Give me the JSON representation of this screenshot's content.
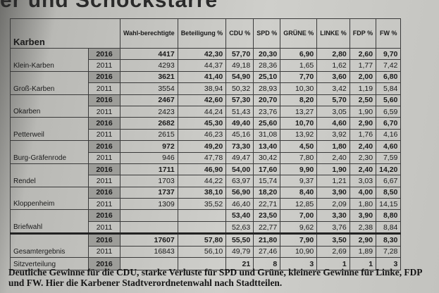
{
  "headline": "er und Schockstarre",
  "table": {
    "header": [
      "Karben",
      "Wahl-berechtigte",
      "Beteiligung %",
      "CDU %",
      "SPD %",
      "GRÜNE %",
      "LINKE %",
      "FDP %",
      "FW %"
    ],
    "rows": [
      {
        "name": "Klein-Karben",
        "years": [
          {
            "year": "2016",
            "cells": [
              "4417",
              "42,30",
              "57,70",
              "20,30",
              "6,90",
              "2,80",
              "2,60",
              "9,70"
            ]
          },
          {
            "year": "2011",
            "cells": [
              "4293",
              "44,37",
              "49,18",
              "28,36",
              "1,65",
              "1,62",
              "1,77",
              "7,42"
            ]
          }
        ]
      },
      {
        "name": "Groß-Karben",
        "years": [
          {
            "year": "2016",
            "cells": [
              "3621",
              "41,40",
              "54,90",
              "25,10",
              "7,70",
              "3,60",
              "2,00",
              "6,80"
            ]
          },
          {
            "year": "2011",
            "cells": [
              "3554",
              "38,94",
              "50,32",
              "28,93",
              "10,30",
              "3,42",
              "1,19",
              "5,84"
            ]
          }
        ]
      },
      {
        "name": "Okarben",
        "years": [
          {
            "year": "2016",
            "cells": [
              "2467",
              "42,60",
              "57,30",
              "20,70",
              "8,20",
              "5,70",
              "2,50",
              "5,60"
            ]
          },
          {
            "year": "2011",
            "cells": [
              "2423",
              "44,24",
              "51,43",
              "23,76",
              "13,27",
              "3,05",
              "1,90",
              "6,59"
            ]
          }
        ]
      },
      {
        "name": "Petterweil",
        "years": [
          {
            "year": "2016",
            "cells": [
              "2682",
              "45,30",
              "49,40",
              "25,60",
              "10,70",
              "4,60",
              "2,90",
              "6,70"
            ]
          },
          {
            "year": "2011",
            "cells": [
              "2615",
              "46,23",
              "45,16",
              "31,08",
              "13,92",
              "3,92",
              "1,76",
              "4,16"
            ]
          }
        ]
      },
      {
        "name": "Burg-Gräfenrode",
        "years": [
          {
            "year": "2016",
            "cells": [
              "972",
              "49,20",
              "73,30",
              "13,40",
              "4,50",
              "1,80",
              "2,40",
              "4,60"
            ]
          },
          {
            "year": "2011",
            "cells": [
              "946",
              "47,78",
              "49,47",
              "30,42",
              "7,80",
              "2,40",
              "2,30",
              "7,59"
            ]
          }
        ]
      },
      {
        "name": "Rendel",
        "years": [
          {
            "year": "2016",
            "cells": [
              "1711",
              "46,90",
              "54,00",
              "17,60",
              "9,90",
              "1,90",
              "2,40",
              "14,20"
            ]
          },
          {
            "year": "2011",
            "cells": [
              "1703",
              "44,22",
              "63,97",
              "15,74",
              "9,37",
              "1,21",
              "3,03",
              "6,67"
            ]
          }
        ]
      },
      {
        "name": "Kloppenheim",
        "years": [
          {
            "year": "2016",
            "cells": [
              "1737",
              "38,10",
              "56,90",
              "18,20",
              "8,40",
              "3,90",
              "4,00",
              "8,50"
            ]
          },
          {
            "year": "2011",
            "cells": [
              "1309",
              "35,52",
              "46,40",
              "22,71",
              "12,85",
              "2,09",
              "1,80",
              "14,15"
            ]
          }
        ]
      },
      {
        "name": "Briefwahl",
        "years": [
          {
            "year": "2016",
            "cells": [
              null,
              null,
              "53,40",
              "23,50",
              "7,00",
              "3,30",
              "3,90",
              "8,80"
            ]
          },
          {
            "year": "2011",
            "cells": [
              null,
              null,
              "52,63",
              "22,77",
              "9,62",
              "3,76",
              "2,38",
              "8,84"
            ]
          }
        ]
      },
      {
        "name": "Gesamtergebnis",
        "years": [
          {
            "year": "2016",
            "cells": [
              "17607",
              "57,80",
              "55,50",
              "21,80",
              "7,90",
              "3,50",
              "2,90",
              "8,30"
            ]
          },
          {
            "year": "2011",
            "cells": [
              "16843",
              "56,10",
              "49,79",
              "27,46",
              "10,90",
              "2,69",
              "1,89",
              "7,28"
            ]
          }
        ]
      },
      {
        "name": "Sitzverteilung",
        "years": [
          {
            "year": "2016",
            "cells": [
              null,
              null,
              "21",
              "8",
              "3",
              "1",
              "1",
              "3"
            ]
          }
        ]
      }
    ]
  },
  "caption": "Deutliche Gewinne für die CDU, starke Verluste für SPD und Grüne, kleinere Gewinne für Linke, FDP und FW. Hier die Karbener Stadtverordnetenwahl nach Stadtteilen."
}
